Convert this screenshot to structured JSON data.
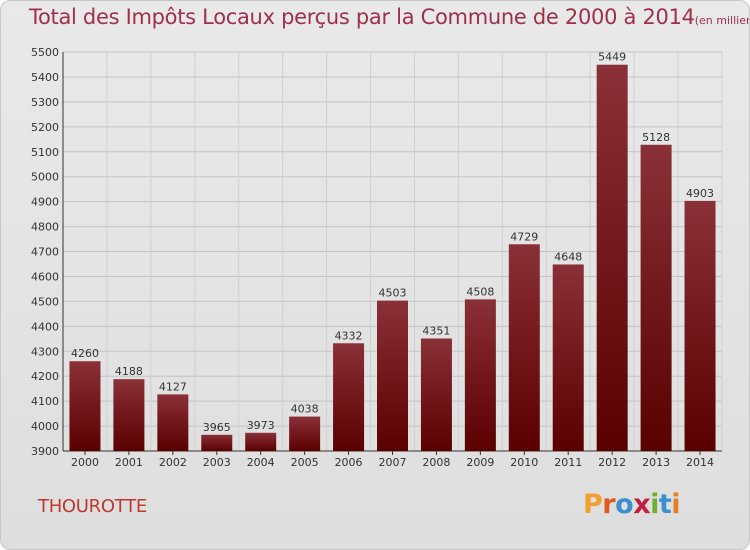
{
  "header": {
    "title": "Total des Impôts Locaux perçus par la Commune de 2000 à 2014",
    "unit_note": "(en milliers d'€)"
  },
  "footer": {
    "commune": "THOUROTTE",
    "brand": "Proxiti"
  },
  "colors": {
    "bar_top": "#8a3038",
    "bar_bottom": "#5a0000",
    "title": "#a0304a",
    "commune": "#c0392b",
    "brand_letters": [
      "#f0a030",
      "#e05a20",
      "#3a8fd0",
      "#c02040",
      "#70b030",
      "#3a8fd0",
      "#e08020"
    ]
  },
  "chart_data": {
    "type": "bar",
    "title": "Total des Impôts Locaux perçus par la Commune de 2000 à 2014",
    "xlabel": "",
    "ylabel": "",
    "categories": [
      "2000",
      "2001",
      "2002",
      "2003",
      "2004",
      "2005",
      "2006",
      "2007",
      "2008",
      "2009",
      "2010",
      "2011",
      "2012",
      "2013",
      "2014"
    ],
    "values": [
      4260,
      4188,
      4127,
      3965,
      3973,
      4038,
      4332,
      4503,
      4351,
      4508,
      4729,
      4648,
      5449,
      5128,
      4903
    ],
    "ylim": [
      3900,
      5500
    ],
    "yticks": [
      3900,
      4000,
      4100,
      4200,
      4300,
      4400,
      4500,
      4600,
      4700,
      4800,
      4900,
      5000,
      5100,
      5200,
      5300,
      5400,
      5500
    ],
    "grid": true,
    "data_labels": true
  }
}
